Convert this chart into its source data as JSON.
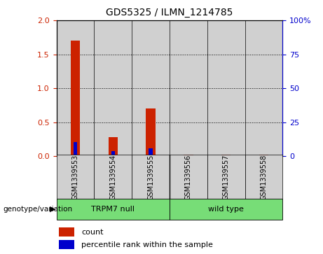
{
  "title": "GDS5325 / ILMN_1214785",
  "samples": [
    "GSM1339553",
    "GSM1339554",
    "GSM1339555",
    "GSM1339556",
    "GSM1339557",
    "GSM1339558"
  ],
  "count_values": [
    1.7,
    0.28,
    0.7,
    0.02,
    0.02,
    0.02
  ],
  "percentile_values": [
    10.5,
    3.5,
    6.0,
    0.5,
    0.5,
    0.5
  ],
  "groups": [
    {
      "label": "TRPM7 null",
      "indices": [
        0,
        1,
        2
      ],
      "color": "#77dd77"
    },
    {
      "label": "wild type",
      "indices": [
        3,
        4,
        5
      ],
      "color": "#77dd77"
    }
  ],
  "group_label": "genotype/variation",
  "left_yticks": [
    0,
    0.5,
    1.0,
    1.5,
    2.0
  ],
  "left_ylim": [
    0,
    2.0
  ],
  "right_yticks": [
    0,
    25,
    50,
    75,
    100
  ],
  "right_ylim": [
    0,
    100
  ],
  "bar_color_red": "#cc2200",
  "bar_color_blue": "#0000cc",
  "left_tick_color": "#cc2200",
  "right_tick_color": "#0000cc",
  "background_color": "#ffffff",
  "bar_bg_color": "#d0d0d0",
  "red_bar_width": 0.25,
  "blue_bar_width": 0.1,
  "legend_count_label": "count",
  "legend_pct_label": "percentile rank within the sample"
}
